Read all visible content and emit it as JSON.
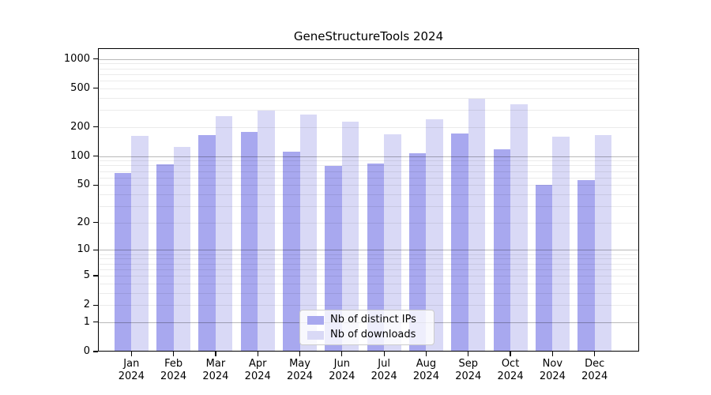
{
  "chart_data": {
    "type": "bar",
    "title": "GeneStructureTools 2024",
    "year_label": "2024",
    "categories": [
      "Jan",
      "Feb",
      "Mar",
      "Apr",
      "May",
      "Jun",
      "Jul",
      "Aug",
      "Sep",
      "Oct",
      "Nov",
      "Dec"
    ],
    "series": [
      {
        "name": "Nb of distinct IPs",
        "color": "#a8a8ef",
        "values": [
          67,
          83,
          166,
          178,
          112,
          79,
          84,
          107,
          170,
          117,
          50,
          56
        ]
      },
      {
        "name": "Nb of downloads",
        "color": "#d9d9f6",
        "values": [
          163,
          125,
          257,
          295,
          270,
          225,
          168,
          239,
          390,
          340,
          158,
          166
        ]
      }
    ],
    "xlabel": "",
    "ylabel": "",
    "yscale": "log1p",
    "yticks": [
      0,
      1,
      2,
      5,
      10,
      20,
      50,
      100,
      200,
      500,
      1000
    ],
    "ylim": [
      0,
      1300
    ],
    "grid": "major-and-minor",
    "grid_major_at": [
      1,
      10,
      100,
      1000
    ],
    "legend_position": "lower center"
  }
}
